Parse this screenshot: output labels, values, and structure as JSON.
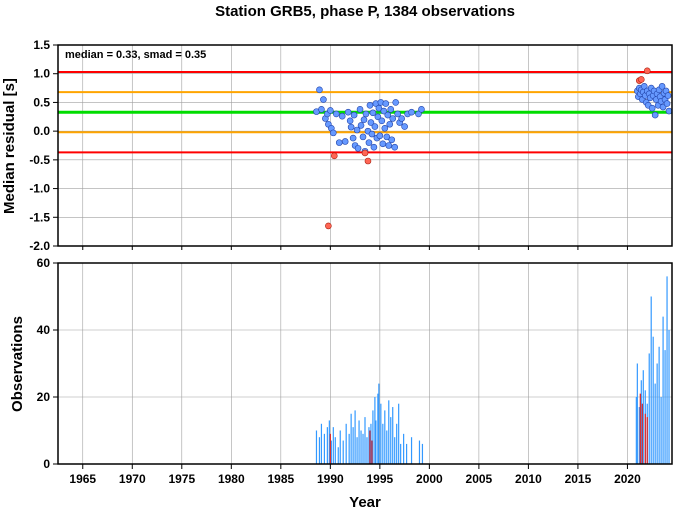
{
  "title": "Station GRB5, phase P, 1384 observations",
  "stats_label": "median = 0.33, smad = 0.35",
  "colors": {
    "red_line": "#ff0000",
    "orange_line": "#ffa500",
    "green_line": "#00dd00",
    "point_blue": "#6699ff",
    "point_red": "#ff6655",
    "bar_blue": "#3399ff",
    "bar_red": "#dd2222",
    "grid": "#a0a0a0"
  },
  "chart_data": [
    {
      "type": "scatter",
      "ylabel": "Median residual [s]",
      "xlim": [
        1962.5,
        2024.5
      ],
      "ylim": [
        -2.0,
        1.5
      ],
      "yticks": [
        "1.5",
        "1.0",
        "0.5",
        "0.0",
        "-0.5",
        "-1.0",
        "-1.5",
        "-2.0"
      ],
      "ytick_values": [
        1.5,
        1.0,
        0.5,
        0.0,
        -0.5,
        -1.0,
        -1.5,
        -2.0
      ],
      "grid": true,
      "reference_lines": [
        {
          "y": 1.03,
          "color": "red"
        },
        {
          "y": 0.68,
          "color": "orange"
        },
        {
          "y": 0.33,
          "color": "green"
        },
        {
          "y": -0.02,
          "color": "orange"
        },
        {
          "y": -0.37,
          "color": "red"
        }
      ],
      "points_blue": [
        [
          1988.6,
          0.34
        ],
        [
          1988.9,
          0.72
        ],
        [
          1989.1,
          0.38
        ],
        [
          1989.3,
          0.55
        ],
        [
          1989.5,
          0.22
        ],
        [
          1989.7,
          0.3
        ],
        [
          1989.8,
          0.12
        ],
        [
          1990.0,
          0.36
        ],
        [
          1990.1,
          0.05
        ],
        [
          1990.3,
          -0.03
        ],
        [
          1990.6,
          0.3
        ],
        [
          1990.9,
          -0.2
        ],
        [
          1991.2,
          0.26
        ],
        [
          1991.5,
          -0.18
        ],
        [
          1991.8,
          0.33
        ],
        [
          1992.0,
          0.18
        ],
        [
          1992.1,
          0.07
        ],
        [
          1992.3,
          -0.12
        ],
        [
          1992.4,
          0.28
        ],
        [
          1992.5,
          -0.25
        ],
        [
          1992.7,
          0.02
        ],
        [
          1992.8,
          -0.3
        ],
        [
          1993.0,
          0.38
        ],
        [
          1993.1,
          0.1
        ],
        [
          1993.3,
          -0.1
        ],
        [
          1993.4,
          0.2
        ],
        [
          1993.5,
          -0.35
        ],
        [
          1993.6,
          0.3
        ],
        [
          1993.8,
          0.0
        ],
        [
          1993.9,
          -0.2
        ],
        [
          1994.0,
          0.45
        ],
        [
          1994.1,
          0.15
        ],
        [
          1994.2,
          -0.05
        ],
        [
          1994.3,
          0.32
        ],
        [
          1994.4,
          -0.28
        ],
        [
          1994.5,
          0.08
        ],
        [
          1994.6,
          0.48
        ],
        [
          1994.7,
          -0.12
        ],
        [
          1994.8,
          0.25
        ],
        [
          1994.9,
          0.4
        ],
        [
          1995.0,
          -0.08
        ],
        [
          1995.1,
          0.5
        ],
        [
          1995.2,
          0.18
        ],
        [
          1995.3,
          -0.22
        ],
        [
          1995.4,
          0.35
        ],
        [
          1995.5,
          0.05
        ],
        [
          1995.6,
          0.48
        ],
        [
          1995.7,
          -0.1
        ],
        [
          1995.8,
          0.28
        ],
        [
          1995.9,
          -0.25
        ],
        [
          1996.0,
          0.12
        ],
        [
          1996.1,
          0.38
        ],
        [
          1996.2,
          -0.15
        ],
        [
          1996.3,
          0.22
        ],
        [
          1996.5,
          -0.28
        ],
        [
          1996.6,
          0.5
        ],
        [
          1996.8,
          0.3
        ],
        [
          1997.0,
          0.15
        ],
        [
          1997.2,
          0.22
        ],
        [
          1997.5,
          0.08
        ],
        [
          1997.8,
          0.3
        ],
        [
          1998.2,
          0.33
        ],
        [
          1998.9,
          0.3
        ],
        [
          1999.2,
          0.38
        ],
        [
          2021.0,
          0.7
        ],
        [
          2021.1,
          0.6
        ],
        [
          2021.2,
          0.75
        ],
        [
          2021.3,
          0.65
        ],
        [
          2021.4,
          0.72
        ],
        [
          2021.5,
          0.55
        ],
        [
          2021.6,
          0.68
        ],
        [
          2021.7,
          0.78
        ],
        [
          2021.8,
          0.62
        ],
        [
          2021.9,
          0.5
        ],
        [
          2022.0,
          0.7
        ],
        [
          2022.1,
          0.45
        ],
        [
          2022.2,
          0.65
        ],
        [
          2022.3,
          0.58
        ],
        [
          2022.4,
          0.75
        ],
        [
          2022.5,
          0.4
        ],
        [
          2022.6,
          0.62
        ],
        [
          2022.7,
          0.7
        ],
        [
          2022.8,
          0.28
        ],
        [
          2022.9,
          0.55
        ],
        [
          2023.0,
          0.65
        ],
        [
          2023.1,
          0.45
        ],
        [
          2023.2,
          0.72
        ],
        [
          2023.3,
          0.6
        ],
        [
          2023.4,
          0.52
        ],
        [
          2023.5,
          0.78
        ],
        [
          2023.6,
          0.42
        ],
        [
          2023.7,
          0.66
        ],
        [
          2023.8,
          0.55
        ],
        [
          2023.9,
          0.7
        ],
        [
          2024.0,
          0.48
        ],
        [
          2024.1,
          0.62
        ],
        [
          2024.2,
          0.35
        ]
      ],
      "points_red": [
        [
          1989.8,
          -1.65
        ],
        [
          1990.4,
          -0.43
        ],
        [
          1993.5,
          -0.38
        ],
        [
          1993.8,
          -0.52
        ],
        [
          2021.2,
          0.88
        ],
        [
          2021.4,
          0.9
        ],
        [
          2022.0,
          1.05
        ]
      ]
    },
    {
      "type": "bar",
      "ylabel": "Observations",
      "xlabel": "Year",
      "xlim": [
        1962.5,
        2024.5
      ],
      "ylim": [
        0,
        60
      ],
      "yticks": [
        "60",
        "40",
        "20",
        "0"
      ],
      "ytick_values": [
        60,
        40,
        20,
        0
      ],
      "xticks": [
        "1965",
        "1970",
        "1975",
        "1980",
        "1985",
        "1990",
        "1995",
        "2000",
        "2005",
        "2010",
        "2015",
        "2020"
      ],
      "xtick_values": [
        1965,
        1970,
        1975,
        1980,
        1985,
        1990,
        1995,
        2000,
        2005,
        2010,
        2015,
        2020
      ],
      "grid": true,
      "bars_blue": [
        [
          1988.6,
          10
        ],
        [
          1988.9,
          8
        ],
        [
          1989.1,
          12
        ],
        [
          1989.4,
          9
        ],
        [
          1989.7,
          11
        ],
        [
          1989.9,
          13
        ],
        [
          1990.1,
          7
        ],
        [
          1990.3,
          11
        ],
        [
          1990.5,
          8
        ],
        [
          1990.8,
          5
        ],
        [
          1991.0,
          10
        ],
        [
          1991.3,
          7
        ],
        [
          1991.6,
          12
        ],
        [
          1991.9,
          9
        ],
        [
          1992.1,
          15
        ],
        [
          1992.3,
          11
        ],
        [
          1992.5,
          16
        ],
        [
          1992.7,
          8
        ],
        [
          1992.9,
          13
        ],
        [
          1993.1,
          10
        ],
        [
          1993.3,
          9
        ],
        [
          1993.5,
          14
        ],
        [
          1993.7,
          8
        ],
        [
          1993.9,
          11
        ],
        [
          1994.1,
          12
        ],
        [
          1994.3,
          16
        ],
        [
          1994.5,
          20
        ],
        [
          1994.6,
          13
        ],
        [
          1994.8,
          21
        ],
        [
          1994.9,
          24
        ],
        [
          1995.1,
          18
        ],
        [
          1995.3,
          12
        ],
        [
          1995.5,
          16
        ],
        [
          1995.7,
          10
        ],
        [
          1995.9,
          19
        ],
        [
          1996.1,
          14
        ],
        [
          1996.3,
          17
        ],
        [
          1996.5,
          8
        ],
        [
          1996.7,
          12
        ],
        [
          1996.9,
          18
        ],
        [
          1997.1,
          6
        ],
        [
          1997.4,
          9
        ],
        [
          1997.7,
          6
        ],
        [
          1998.2,
          8
        ],
        [
          1999.0,
          7
        ],
        [
          1999.3,
          6
        ],
        [
          2020.9,
          20
        ],
        [
          2021.0,
          30
        ],
        [
          2021.2,
          17
        ],
        [
          2021.4,
          25
        ],
        [
          2021.6,
          28
        ],
        [
          2021.8,
          22
        ],
        [
          2022.0,
          18
        ],
        [
          2022.2,
          33
        ],
        [
          2022.4,
          50
        ],
        [
          2022.6,
          38
        ],
        [
          2022.8,
          24
        ],
        [
          2023.0,
          30
        ],
        [
          2023.2,
          35
        ],
        [
          2023.4,
          20
        ],
        [
          2023.6,
          44
        ],
        [
          2023.8,
          34
        ],
        [
          2024.0,
          56
        ],
        [
          2024.2,
          40
        ]
      ],
      "bars_red": [
        [
          1990.0,
          9
        ],
        [
          1994.0,
          10
        ],
        [
          1994.2,
          7
        ],
        [
          2021.3,
          21
        ],
        [
          2021.5,
          18
        ],
        [
          2021.8,
          15
        ],
        [
          2022.0,
          14
        ]
      ]
    }
  ]
}
